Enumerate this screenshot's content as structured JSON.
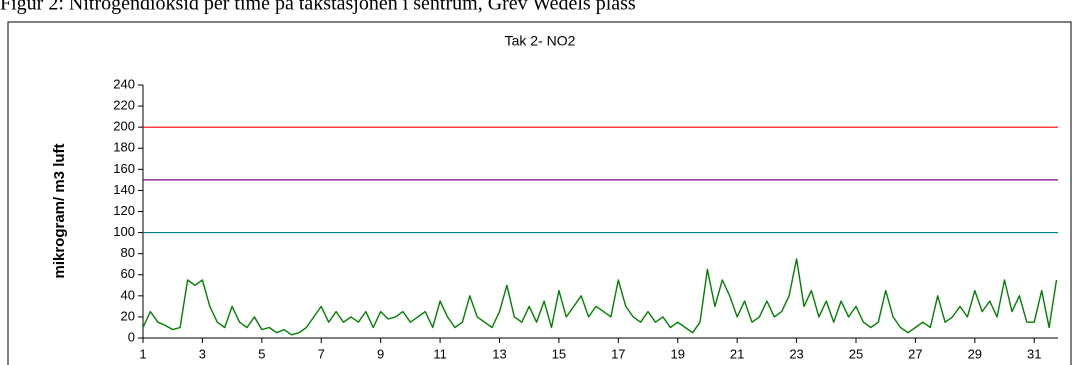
{
  "chart_data": {
    "type": "line",
    "caption": "Figur 2: Nitrogendioksid per time på takstasjonen i sentrum, Grev Wedels plass",
    "title": "Tak 2- NO2",
    "y_label": "mikrogram/ m3 luft",
    "x": [
      1,
      1.25,
      1.5,
      1.75,
      2,
      2.25,
      2.5,
      2.75,
      3,
      3.25,
      3.5,
      3.75,
      4,
      4.25,
      4.5,
      4.75,
      5,
      5.25,
      5.5,
      5.75,
      6,
      6.25,
      6.5,
      6.75,
      7,
      7.25,
      7.5,
      7.75,
      8,
      8.25,
      8.5,
      8.75,
      9,
      9.25,
      9.5,
      9.75,
      10,
      10.25,
      10.5,
      10.75,
      11,
      11.25,
      11.5,
      11.75,
      12,
      12.25,
      12.5,
      12.75,
      13,
      13.25,
      13.5,
      13.75,
      14,
      14.25,
      14.5,
      14.75,
      15,
      15.25,
      15.5,
      15.75,
      16,
      16.25,
      16.5,
      16.75,
      17,
      17.25,
      17.5,
      17.75,
      18,
      18.25,
      18.5,
      18.75,
      19,
      19.25,
      19.5,
      19.75,
      20,
      20.25,
      20.5,
      20.75,
      21,
      21.25,
      21.5,
      21.75,
      22,
      22.25,
      22.5,
      22.75,
      23,
      23.25,
      23.5,
      23.75,
      24,
      24.25,
      24.5,
      24.75,
      25,
      25.25,
      25.5,
      25.75,
      26,
      26.25,
      26.5,
      26.75,
      27,
      27.25,
      27.5,
      27.75,
      28,
      28.25,
      28.5,
      28.75,
      29,
      29.25,
      29.5,
      29.75,
      30,
      30.25,
      30.5,
      30.75,
      31,
      31.25,
      31.5,
      31.75
    ],
    "series": [
      {
        "name": "NO2",
        "color": "#008000",
        "values": [
          10,
          25,
          15,
          12,
          8,
          10,
          55,
          50,
          55,
          30,
          15,
          10,
          30,
          15,
          10,
          20,
          8,
          10,
          5,
          8,
          3,
          5,
          10,
          20,
          30,
          15,
          25,
          15,
          20,
          15,
          25,
          10,
          25,
          18,
          20,
          25,
          15,
          20,
          25,
          10,
          35,
          20,
          10,
          15,
          40,
          20,
          15,
          10,
          25,
          50,
          20,
          15,
          30,
          15,
          35,
          10,
          45,
          20,
          30,
          40,
          20,
          30,
          25,
          20,
          55,
          30,
          20,
          15,
          25,
          15,
          20,
          10,
          15,
          10,
          5,
          15,
          65,
          30,
          55,
          40,
          20,
          35,
          15,
          20,
          35,
          20,
          25,
          40,
          75,
          30,
          45,
          20,
          35,
          15,
          35,
          20,
          30,
          15,
          10,
          15,
          45,
          20,
          10,
          5,
          10,
          15,
          10,
          40,
          15,
          20,
          30,
          20,
          45,
          25,
          35,
          20,
          55,
          25,
          40,
          15,
          15,
          45,
          10,
          55
        ]
      }
    ],
    "reference_lines": [
      {
        "value": 200,
        "color": "#ff0000"
      },
      {
        "value": 150,
        "color": "#800080"
      },
      {
        "value": 100,
        "color": "#008080"
      }
    ],
    "xlim": [
      1,
      31.8
    ],
    "xticks": [
      1,
      3,
      5,
      7,
      9,
      11,
      13,
      15,
      17,
      19,
      21,
      23,
      25,
      27,
      29,
      31
    ],
    "ylim": [
      0,
      240
    ],
    "yticks": [
      0,
      20,
      40,
      60,
      80,
      100,
      120,
      140,
      160,
      180,
      200,
      220,
      240
    ]
  }
}
